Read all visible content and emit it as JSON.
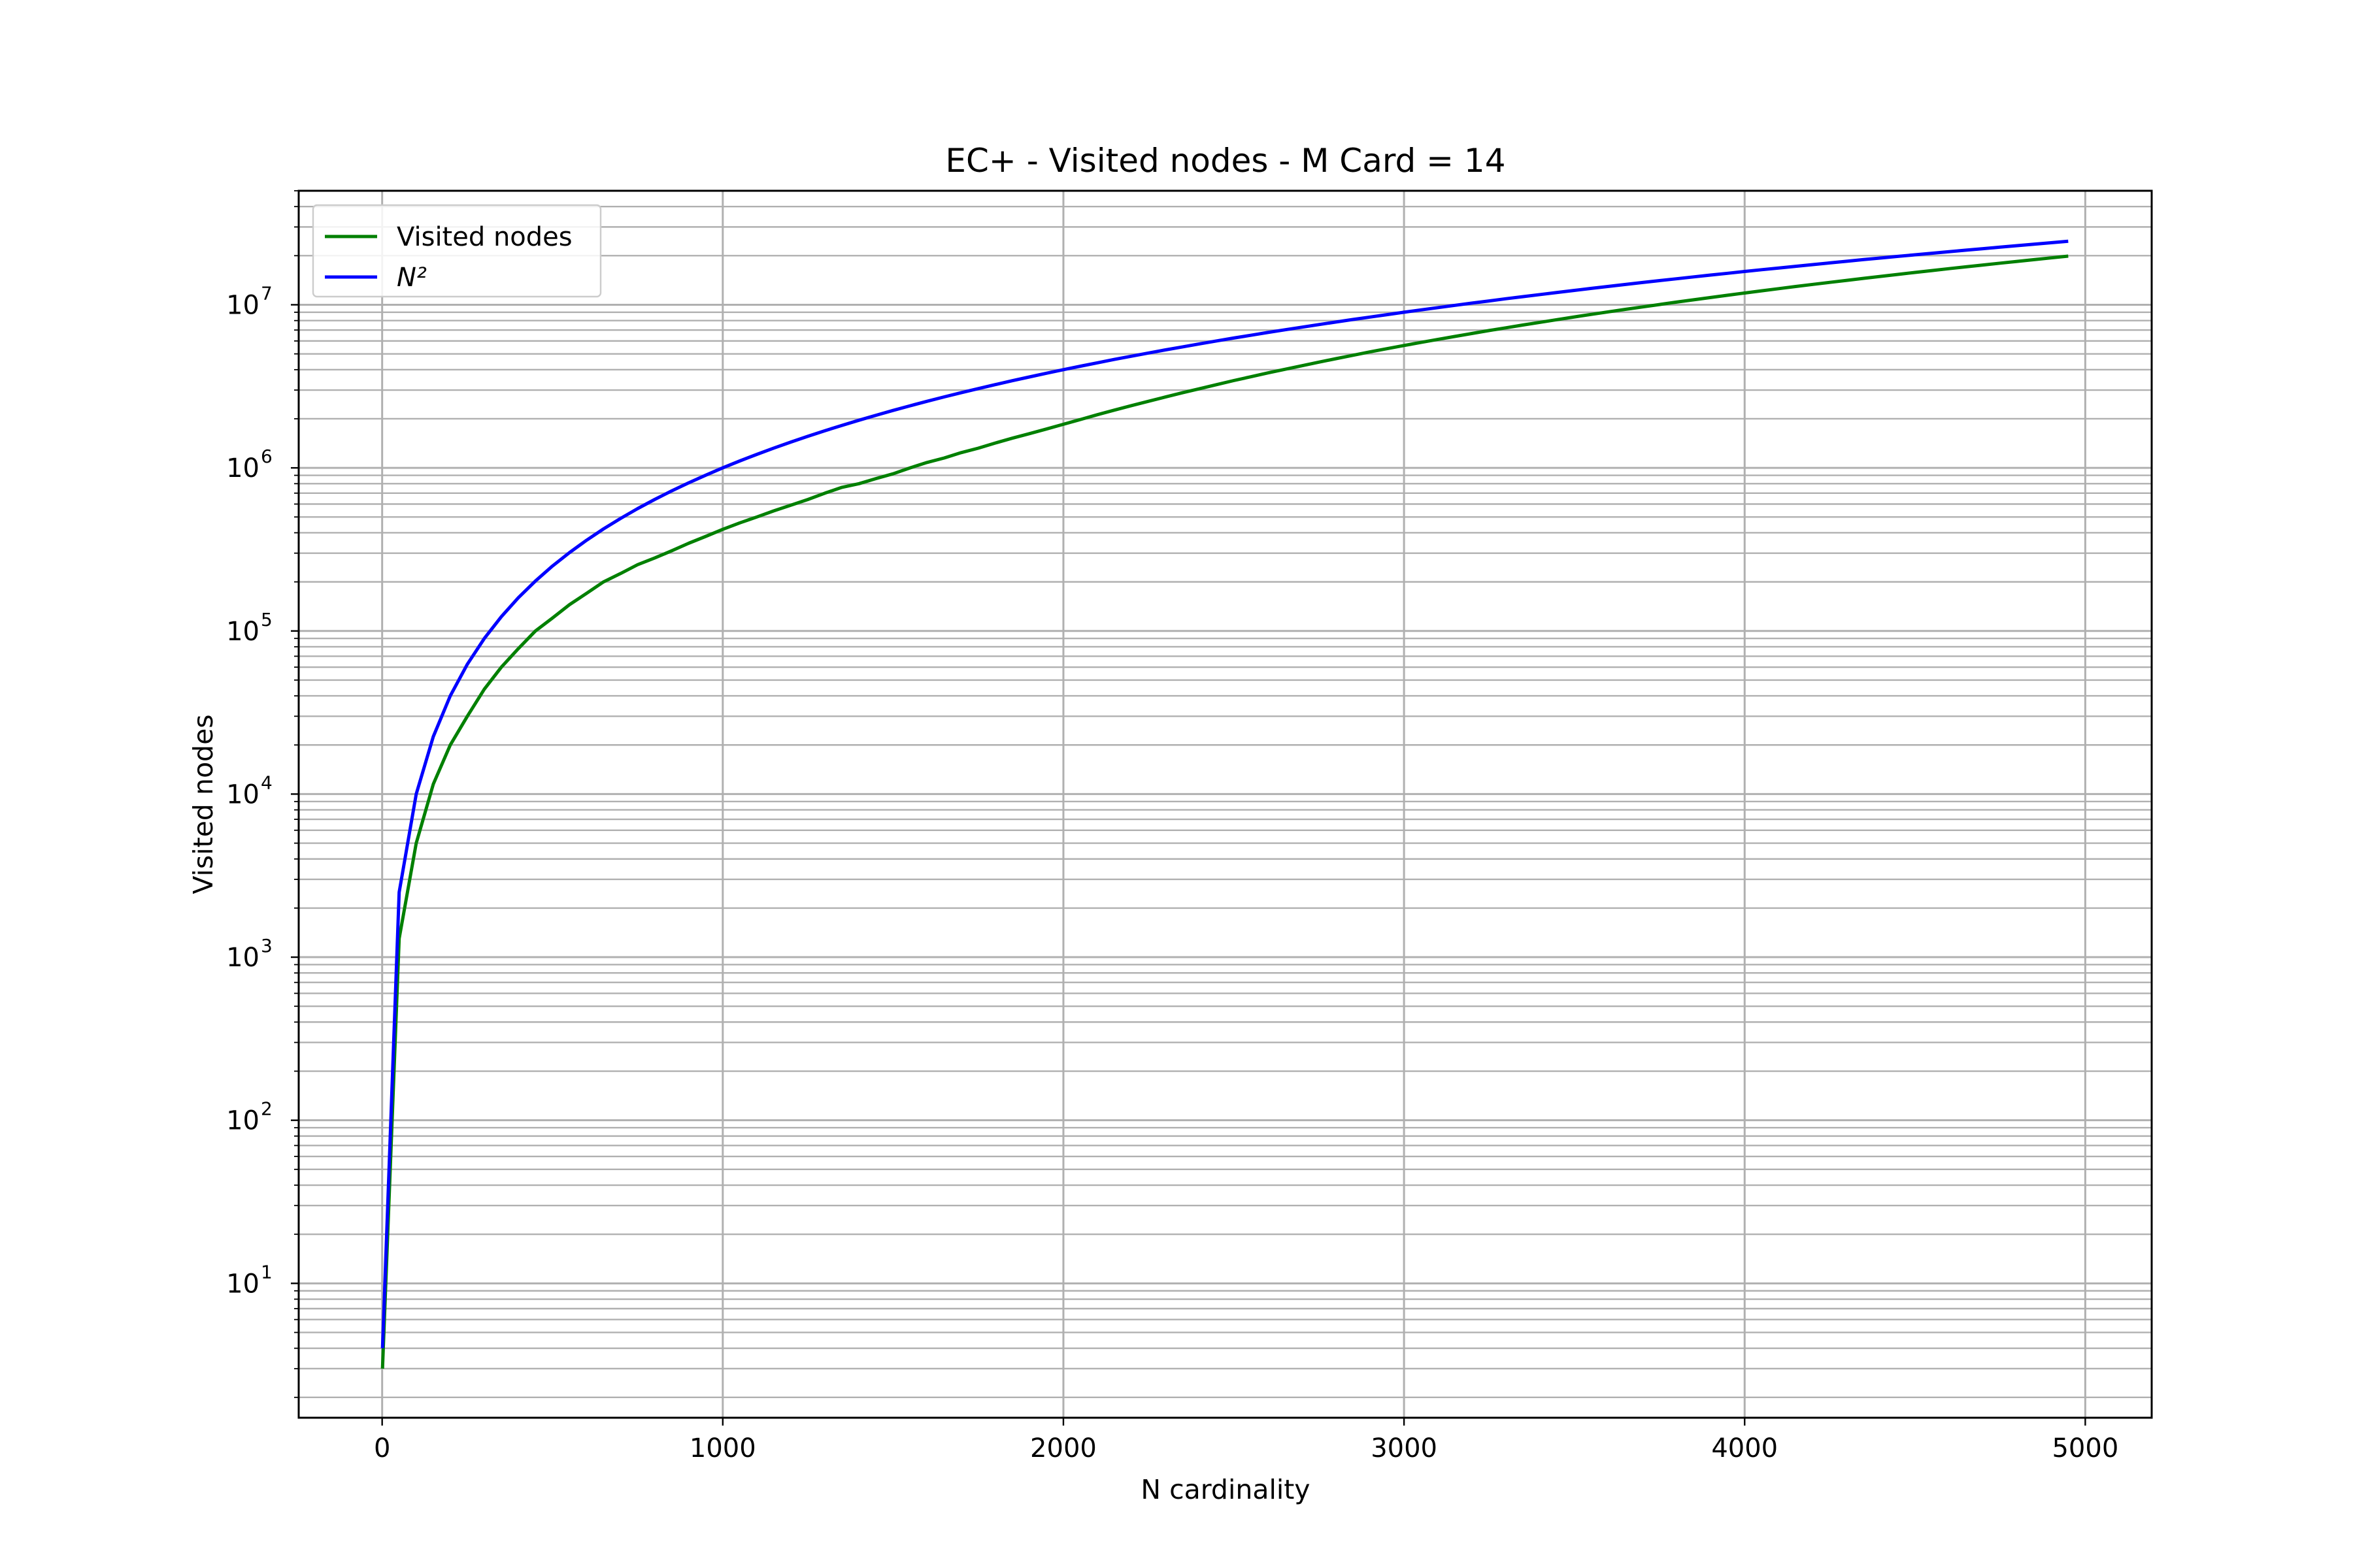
{
  "chart_data": {
    "type": "line",
    "title": "EC+ - Visited nodes - M Card = 14",
    "xlabel": "N cardinality",
    "ylabel": "Visited nodes",
    "x_scale": "linear",
    "y_scale": "log",
    "xlim": [
      -245,
      5195
    ],
    "ylim": [
      1.5,
      50000000
    ],
    "x_ticks": [
      0,
      1000,
      2000,
      3000,
      4000,
      5000
    ],
    "x_tick_labels": [
      "0",
      "1000",
      "2000",
      "3000",
      "4000",
      "5000"
    ],
    "y_tick_exponents": [
      1,
      2,
      3,
      4,
      5,
      6,
      7
    ],
    "y_tick_base": "10",
    "grid": "major and minor",
    "legend_position": "upper-left",
    "series": [
      {
        "name": "Visited nodes",
        "color": "#008000",
        "x": [
          1,
          50,
          100,
          150,
          200,
          250,
          300,
          350,
          400,
          450,
          500,
          550,
          600,
          650,
          700,
          750,
          800,
          850,
          900,
          950,
          1000,
          1050,
          1100,
          1150,
          1200,
          1250,
          1300,
          1350,
          1400,
          1450,
          1500,
          1550,
          1600,
          1650,
          1700,
          1750,
          1800,
          1850,
          1900,
          1950,
          2000,
          2050,
          2100,
          2150,
          2200,
          2250,
          2300,
          2350,
          2400,
          2450,
          2500,
          2550,
          2600,
          2650,
          2700,
          2750,
          2800,
          2850,
          2900,
          2950,
          3000,
          3050,
          3100,
          3150,
          3200,
          3250,
          3300,
          3350,
          3400,
          3450,
          3500,
          3550,
          3600,
          3650,
          3700,
          3750,
          3800,
          3850,
          3900,
          3950,
          4000,
          4050,
          4100,
          4150,
          4200,
          4250,
          4300,
          4350,
          4400,
          4450,
          4500,
          4550,
          4600,
          4650,
          4700,
          4750,
          4800,
          4850,
          4900,
          4950
        ],
        "y": [
          3,
          1300,
          5000,
          11500,
          20000,
          30000,
          44000,
          60000,
          78000,
          100000,
          120000,
          145000,
          170000,
          200000,
          225000,
          255000,
          280000,
          310000,
          345000,
          380000,
          420000,
          460000,
          500000,
          545000,
          590000,
          640000,
          700000,
          760000,
          800000,
          860000,
          920000,
          1000000,
          1080000,
          1150000,
          1240000,
          1320000,
          1420000,
          1520000,
          1620000,
          1730000,
          1850000,
          1980000,
          2120000,
          2260000,
          2410000,
          2560000,
          2720000,
          2890000,
          3060000,
          3240000,
          3430000,
          3620000,
          3820000,
          4020000,
          4230000,
          4450000,
          4670000,
          4900000,
          5140000,
          5380000,
          5630000,
          5880000,
          6140000,
          6400000,
          6670000,
          6950000,
          7230000,
          7520000,
          7810000,
          8110000,
          8420000,
          8730000,
          9050000,
          9370000,
          9700000,
          10040000,
          10380000,
          10730000,
          11080000,
          11440000,
          11810000,
          12180000,
          12560000,
          12940000,
          13330000,
          13720000,
          14120000,
          14530000,
          14940000,
          15360000,
          15780000,
          16210000,
          16650000,
          17090000,
          17540000,
          17990000,
          18450000,
          18920000,
          19390000,
          19870000
        ]
      },
      {
        "name": "N²",
        "color": "#0000ff",
        "x": [
          1,
          50,
          100,
          150,
          200,
          250,
          300,
          350,
          400,
          450,
          500,
          550,
          600,
          650,
          700,
          750,
          800,
          850,
          900,
          950,
          1000,
          1050,
          1100,
          1150,
          1200,
          1250,
          1300,
          1350,
          1400,
          1450,
          1500,
          1550,
          1600,
          1650,
          1700,
          1750,
          1800,
          1850,
          1900,
          1950,
          2000,
          2050,
          2100,
          2150,
          2200,
          2250,
          2300,
          2350,
          2400,
          2450,
          2500,
          2550,
          2600,
          2650,
          2700,
          2750,
          2800,
          2850,
          2900,
          2950,
          3000,
          3050,
          3100,
          3150,
          3200,
          3250,
          3300,
          3350,
          3400,
          3450,
          3500,
          3550,
          3600,
          3650,
          3700,
          3750,
          3800,
          3850,
          3900,
          3950,
          4000,
          4050,
          4100,
          4150,
          4200,
          4250,
          4300,
          4350,
          4400,
          4450,
          4500,
          4550,
          4600,
          4650,
          4700,
          4750,
          4800,
          4850,
          4900,
          4950
        ],
        "y": [
          4,
          2500,
          10000,
          22500,
          40000,
          62500,
          90000,
          122500,
          160000,
          202500,
          250000,
          302500,
          360000,
          422500,
          490000,
          562500,
          640000,
          722500,
          810000,
          902500,
          1000000,
          1102500,
          1210000,
          1322500,
          1440000,
          1562500,
          1690000,
          1822500,
          1960000,
          2102500,
          2250000,
          2402500,
          2560000,
          2722500,
          2890000,
          3062500,
          3240000,
          3422500,
          3610000,
          3802500,
          4000000,
          4202500,
          4410000,
          4622500,
          4840000,
          5062500,
          5290000,
          5522500,
          5760000,
          6002500,
          6250000,
          6502500,
          6760000,
          7022500,
          7290000,
          7562500,
          7840000,
          8122500,
          8410000,
          8702500,
          9000000,
          9302500,
          9610000,
          9922500,
          10240000,
          10562500,
          10890000,
          11222500,
          11560000,
          11902500,
          12250000,
          12602500,
          12960000,
          13322500,
          13690000,
          14062500,
          14440000,
          14822500,
          15210000,
          15602500,
          16000000,
          16402500,
          16810000,
          17222500,
          17640000,
          18062500,
          18490000,
          18922500,
          19360000,
          19802500,
          20250000,
          20702500,
          21160000,
          21622500,
          22090000,
          22562500,
          23040000,
          23522500,
          24010000,
          24502500
        ]
      }
    ]
  }
}
